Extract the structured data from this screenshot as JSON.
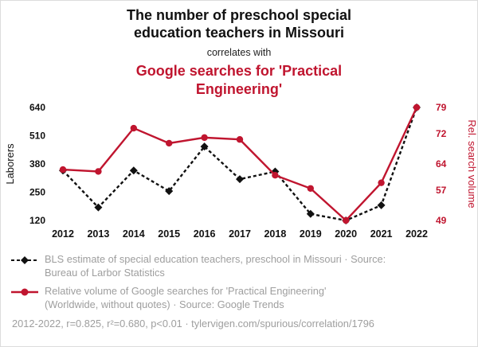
{
  "header": {
    "title": "The number of preschool special education teachers in Missouri",
    "connector": "correlates with",
    "subtitle": "Google searches for 'Practical Engineering'"
  },
  "colors": {
    "accent": "#c0152f",
    "ink": "#111111",
    "gray": "#9e9e9e"
  },
  "chart_data": {
    "type": "line",
    "x": [
      2012,
      2013,
      2014,
      2015,
      2016,
      2017,
      2018,
      2019,
      2020,
      2021,
      2022
    ],
    "series": [
      {
        "name": "BLS estimate of special education teachers, preschool in Missouri",
        "axis": "left",
        "style": "dashed-diamond",
        "color": "#111111",
        "values": [
          350,
          180,
          350,
          255,
          460,
          310,
          345,
          150,
          120,
          190,
          640
        ]
      },
      {
        "name": "Relative volume of Google searches for 'Practical Engineering'",
        "axis": "right",
        "style": "solid-circle",
        "color": "#c0152f",
        "values": [
          62.5,
          62,
          73.5,
          69.5,
          71,
          70.5,
          61,
          57.5,
          49,
          59,
          79
        ]
      }
    ],
    "left_axis": {
      "label": "Laborers",
      "ticks": [
        120,
        250,
        380,
        510,
        640
      ],
      "range": [
        120,
        640
      ]
    },
    "right_axis": {
      "label": "Rel. search volume",
      "ticks": [
        49,
        57,
        64,
        72,
        79
      ],
      "range": [
        49,
        79
      ]
    },
    "grid": false,
    "legend_position": "bottom"
  },
  "legend": {
    "rows": [
      {
        "line1": "BLS estimate of special education teachers, preschool in Missouri · Source:",
        "line2": "Bureau of Larbor Statistics"
      },
      {
        "line1": "Relative volume of Google searches for 'Practical Engineering'",
        "line2": "(Worldwide, without quotes) · Source: Google Trends"
      }
    ]
  },
  "footer": {
    "stats": "2012-2022, r=0.825, r²=0.680, p<0.01 · tylervigen.com/spurious/correlation/1796"
  }
}
